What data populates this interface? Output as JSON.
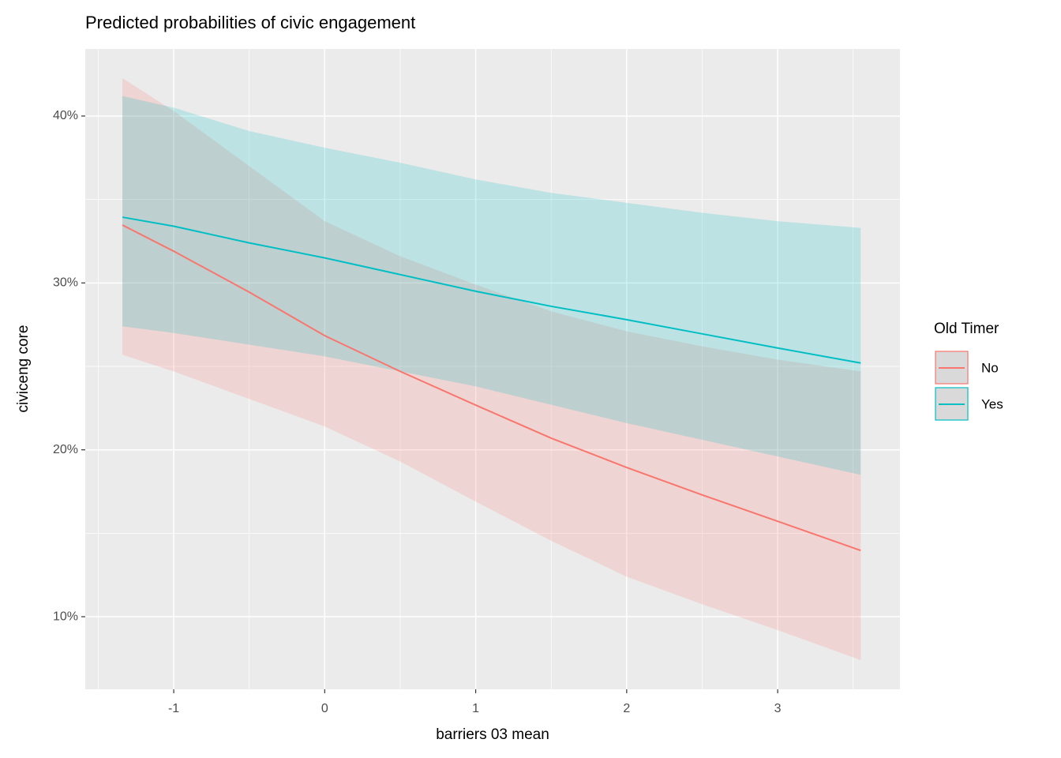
{
  "chart_data": {
    "type": "line-ribbon",
    "title": "Predicted probabilities of civic engagement",
    "x_label": "barriers 03 mean",
    "y_label": "civiceng core",
    "legend_title": "Old Timer",
    "x": [
      -1.34,
      -1,
      -0.5,
      0,
      0.5,
      1,
      1.5,
      2,
      2.5,
      3,
      3.55
    ],
    "series": [
      {
        "name": "No",
        "color": "#F8766D",
        "values": [
          33.47,
          31.9,
          29.45,
          26.84,
          24.7,
          22.68,
          20.7,
          18.94,
          17.3,
          15.72,
          13.97
        ],
        "lower": [
          25.7,
          24.7,
          23.05,
          21.4,
          19.3,
          16.9,
          14.55,
          12.4,
          10.75,
          9.2,
          7.4
        ],
        "upper": [
          42.27,
          40.3,
          37.0,
          33.7,
          31.6,
          29.9,
          28.3,
          27.1,
          26.2,
          25.4,
          24.7
        ]
      },
      {
        "name": "Yes",
        "color": "#00BFC4",
        "values": [
          33.94,
          33.4,
          32.4,
          31.5,
          30.5,
          29.5,
          28.6,
          27.8,
          26.95,
          26.1,
          25.2
        ],
        "lower": [
          27.4,
          27.0,
          26.3,
          25.6,
          24.7,
          23.8,
          22.7,
          21.6,
          20.6,
          19.6,
          18.5
        ],
        "upper": [
          41.2,
          40.5,
          39.1,
          38.1,
          37.2,
          36.2,
          35.4,
          34.8,
          34.2,
          33.7,
          33.3
        ]
      }
    ],
    "xlim": [
      -1.586,
      3.81
    ],
    "xticks": [
      -1,
      0,
      1,
      2,
      3
    ],
    "ylim": [
      5.65,
      44.02
    ],
    "yticks": [
      {
        "value": 10,
        "label": "10%"
      },
      {
        "value": 20,
        "label": "20%"
      },
      {
        "value": 30,
        "label": "30%"
      },
      {
        "value": 40,
        "label": "40%"
      }
    ],
    "grid": true
  }
}
